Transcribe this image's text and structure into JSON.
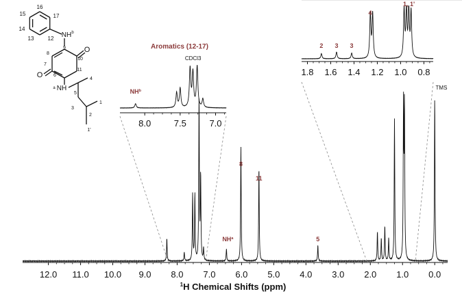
{
  "chart_data": [
    {
      "type": "line",
      "name": "main-spectrum",
      "xlabel_prefix": "1",
      "xlabel": "H Chemical Shifts (ppm)",
      "xlim": [
        12.8,
        -0.4
      ],
      "x_ticks": [
        "12.0",
        "11.0",
        "10.0",
        "9.0",
        "8.0",
        "7.0",
        "6.0",
        "5.0",
        "4.0",
        "3.0",
        "2.0",
        "1.0",
        "0.0"
      ],
      "x_tick_values": [
        12,
        11,
        10,
        9,
        8,
        7,
        6,
        5,
        4,
        3,
        2,
        1,
        0
      ],
      "peaks": [
        {
          "x": 8.32,
          "h": 0.13
        },
        {
          "x": 7.78,
          "h": 0.05
        },
        {
          "x": 7.52,
          "h": 0.38
        },
        {
          "x": 7.45,
          "h": 0.38
        },
        {
          "x": 7.32,
          "h": 0.93
        },
        {
          "x": 7.27,
          "h": 0.48
        },
        {
          "x": 7.18,
          "h": 0.07
        },
        {
          "x": 6.47,
          "h": 0.07
        },
        {
          "x": 6.02,
          "h": 0.66
        },
        {
          "x": 5.46,
          "h": 0.54
        },
        {
          "x": 3.63,
          "h": 0.09
        },
        {
          "x": 1.78,
          "h": 0.17
        },
        {
          "x": 1.66,
          "h": 0.13
        },
        {
          "x": 1.55,
          "h": 0.2
        },
        {
          "x": 1.43,
          "h": 0.13
        },
        {
          "x": 1.25,
          "h": 0.81
        },
        {
          "x": 0.97,
          "h": 0.86
        },
        {
          "x": 0.94,
          "h": 0.86
        },
        {
          "x": 0.0,
          "h": 0.93
        }
      ],
      "labels": [
        {
          "text": "8",
          "x": 6.02,
          "h": 0.66
        },
        {
          "text": "11",
          "x": 5.46,
          "h": 0.54
        },
        {
          "text": "NH",
          "sup": "a",
          "x": 6.47,
          "h": 0.1
        },
        {
          "text": "5",
          "x": 3.63,
          "h": 0.11
        },
        {
          "text": "TMS",
          "x": -0.12,
          "h": 0.96
        }
      ]
    },
    {
      "type": "line",
      "name": "aromatic-inset",
      "title": "Aromatics (12-17)",
      "x_ticks": [
        "8.0",
        "7.5",
        "7.0"
      ],
      "x_tick_values": [
        8.0,
        7.5,
        7.0
      ],
      "xlim": [
        8.35,
        6.85
      ],
      "peaks": [
        {
          "x": 8.13,
          "h": 0.1
        },
        {
          "x": 7.55,
          "h": 0.35
        },
        {
          "x": 7.5,
          "h": 0.45
        },
        {
          "x": 7.36,
          "h": 0.9
        },
        {
          "x": 7.32,
          "h": 0.8
        },
        {
          "x": 7.26,
          "h": 0.95
        },
        {
          "x": 7.18,
          "h": 0.2
        }
      ],
      "labels": [
        {
          "text": "NH",
          "sup": "b",
          "x": 8.13
        },
        {
          "text": "CDCl3",
          "x": 7.26
        }
      ]
    },
    {
      "type": "line",
      "name": "aliphatic-inset",
      "x_ticks": [
        "1.8",
        "1.6",
        "1.4",
        "1.2",
        "1.0",
        "0.8"
      ],
      "x_tick_values": [
        1.8,
        1.6,
        1.4,
        1.2,
        1.0,
        0.8
      ],
      "xlim": [
        1.85,
        0.72
      ],
      "peaks": [
        {
          "x": 1.68,
          "h": 0.1
        },
        {
          "x": 1.55,
          "h": 0.13
        },
        {
          "x": 1.42,
          "h": 0.11
        },
        {
          "x": 1.26,
          "h": 0.85
        },
        {
          "x": 1.24,
          "h": 0.85
        },
        {
          "x": 0.97,
          "h": 0.92
        },
        {
          "x": 0.95,
          "h": 0.9
        },
        {
          "x": 0.93,
          "h": 0.92
        },
        {
          "x": 0.91,
          "h": 0.88
        }
      ],
      "labels": [
        {
          "text": "2",
          "x": 1.68
        },
        {
          "text": "3",
          "x": 1.55
        },
        {
          "text": "3",
          "x": 1.42
        },
        {
          "text": "4",
          "x": 1.25
        },
        {
          "text": "1, 1'",
          "x": 0.94
        }
      ]
    }
  ],
  "molecule": {
    "atoms": [
      "16",
      "15",
      "17",
      "14",
      "13",
      "12",
      "NH",
      "b",
      "9",
      "8",
      "O",
      "10",
      "7",
      "O",
      "6",
      "11",
      "a",
      "NH",
      "5",
      "4",
      "3",
      "2",
      "1",
      "1'"
    ]
  }
}
